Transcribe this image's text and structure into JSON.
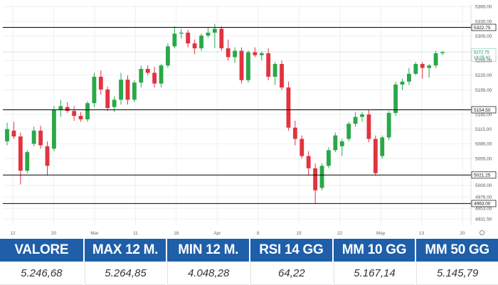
{
  "chart_data": {
    "type": "candlestick",
    "x_ticks": [
      "12",
      "20",
      "Mar",
      "11",
      "18",
      "Apr",
      "8",
      "15",
      "22",
      "May",
      "13",
      "20"
    ],
    "y_ticks": [
      "5365.00",
      "5335.00",
      "5305.00",
      "5255.00",
      "5225.00",
      "5195.00",
      "5145.00",
      "5115.00",
      "5085.00",
      "5055.00",
      "5000.00",
      "4976.00",
      "4953.00",
      "4931.50"
    ],
    "ylim": [
      4920,
      5370
    ],
    "levels": [
      {
        "label": "5322.75",
        "value": 5322.75,
        "color": "#000000"
      },
      {
        "label": "5154.50",
        "value": 5154.5,
        "color": "#000000"
      },
      {
        "label": "5021.25",
        "value": 5021.25,
        "color": "#000000"
      },
      {
        "label": "4963.00",
        "value": 4963.0,
        "color": "#000000"
      }
    ],
    "current_price": {
      "label": "5272.75",
      "sublabel": "16:05:42",
      "value": 5272.75,
      "color": "#1a9e86"
    },
    "colors": {
      "up": "#2aa84a",
      "down": "#e2333f",
      "grid": "#efefef"
    },
    "candles": [
      {
        "o": 5090,
        "h": 5128,
        "l": 5082,
        "c": 5115
      },
      {
        "o": 5112,
        "h": 5130,
        "l": 5095,
        "c": 5100
      },
      {
        "o": 5100,
        "h": 5108,
        "l": 5002,
        "c": 5030
      },
      {
        "o": 5030,
        "h": 5072,
        "l": 5025,
        "c": 5068
      },
      {
        "o": 5085,
        "h": 5120,
        "l": 5080,
        "c": 5112
      },
      {
        "o": 5112,
        "h": 5122,
        "l": 5075,
        "c": 5082
      },
      {
        "o": 5080,
        "h": 5090,
        "l": 5020,
        "c": 5040
      },
      {
        "o": 5075,
        "h": 5162,
        "l": 5070,
        "c": 5155
      },
      {
        "o": 5155,
        "h": 5175,
        "l": 5140,
        "c": 5162
      },
      {
        "o": 5160,
        "h": 5170,
        "l": 5148,
        "c": 5152
      },
      {
        "o": 5152,
        "h": 5162,
        "l": 5132,
        "c": 5142
      },
      {
        "o": 5142,
        "h": 5150,
        "l": 5130,
        "c": 5135
      },
      {
        "o": 5135,
        "h": 5172,
        "l": 5130,
        "c": 5168
      },
      {
        "o": 5168,
        "h": 5230,
        "l": 5160,
        "c": 5222
      },
      {
        "o": 5222,
        "h": 5235,
        "l": 5185,
        "c": 5196
      },
      {
        "o": 5196,
        "h": 5202,
        "l": 5152,
        "c": 5158
      },
      {
        "o": 5160,
        "h": 5182,
        "l": 5150,
        "c": 5175
      },
      {
        "o": 5175,
        "h": 5230,
        "l": 5165,
        "c": 5216
      },
      {
        "o": 5216,
        "h": 5225,
        "l": 5165,
        "c": 5175
      },
      {
        "o": 5175,
        "h": 5215,
        "l": 5170,
        "c": 5210
      },
      {
        "o": 5210,
        "h": 5245,
        "l": 5200,
        "c": 5238
      },
      {
        "o": 5238,
        "h": 5245,
        "l": 5225,
        "c": 5230
      },
      {
        "o": 5230,
        "h": 5242,
        "l": 5200,
        "c": 5208
      },
      {
        "o": 5208,
        "h": 5248,
        "l": 5200,
        "c": 5245
      },
      {
        "o": 5245,
        "h": 5290,
        "l": 5240,
        "c": 5284
      },
      {
        "o": 5284,
        "h": 5325,
        "l": 5280,
        "c": 5310
      },
      {
        "o": 5310,
        "h": 5320,
        "l": 5300,
        "c": 5312
      },
      {
        "o": 5312,
        "h": 5318,
        "l": 5282,
        "c": 5290
      },
      {
        "o": 5290,
        "h": 5298,
        "l": 5268,
        "c": 5280
      },
      {
        "o": 5280,
        "h": 5310,
        "l": 5275,
        "c": 5306
      },
      {
        "o": 5306,
        "h": 5322,
        "l": 5302,
        "c": 5312
      },
      {
        "o": 5312,
        "h": 5330,
        "l": 5280,
        "c": 5320
      },
      {
        "o": 5320,
        "h": 5325,
        "l": 5275,
        "c": 5280
      },
      {
        "o": 5280,
        "h": 5298,
        "l": 5255,
        "c": 5262
      },
      {
        "o": 5262,
        "h": 5282,
        "l": 5250,
        "c": 5275
      },
      {
        "o": 5275,
        "h": 5282,
        "l": 5208,
        "c": 5215
      },
      {
        "o": 5215,
        "h": 5276,
        "l": 5210,
        "c": 5272
      },
      {
        "o": 5272,
        "h": 5282,
        "l": 5262,
        "c": 5266
      },
      {
        "o": 5266,
        "h": 5274,
        "l": 5255,
        "c": 5270
      },
      {
        "o": 5270,
        "h": 5280,
        "l": 5215,
        "c": 5222
      },
      {
        "o": 5222,
        "h": 5252,
        "l": 5205,
        "c": 5248
      },
      {
        "o": 5248,
        "h": 5255,
        "l": 5195,
        "c": 5200
      },
      {
        "o": 5200,
        "h": 5212,
        "l": 5112,
        "c": 5118
      },
      {
        "o": 5118,
        "h": 5132,
        "l": 5082,
        "c": 5095
      },
      {
        "o": 5095,
        "h": 5102,
        "l": 5055,
        "c": 5060
      },
      {
        "o": 5060,
        "h": 5070,
        "l": 5020,
        "c": 5035
      },
      {
        "o": 5035,
        "h": 5045,
        "l": 4963,
        "c": 4990
      },
      {
        "o": 4995,
        "h": 5045,
        "l": 4990,
        "c": 5040
      },
      {
        "o": 5040,
        "h": 5078,
        "l": 5035,
        "c": 5072
      },
      {
        "o": 5072,
        "h": 5108,
        "l": 5068,
        "c": 5102
      },
      {
        "o": 5080,
        "h": 5095,
        "l": 5060,
        "c": 5090
      },
      {
        "o": 5095,
        "h": 5130,
        "l": 5090,
        "c": 5126
      },
      {
        "o": 5126,
        "h": 5150,
        "l": 5120,
        "c": 5140
      },
      {
        "o": 5140,
        "h": 5150,
        "l": 5130,
        "c": 5145
      },
      {
        "o": 5145,
        "h": 5155,
        "l": 5088,
        "c": 5095
      },
      {
        "o": 5095,
        "h": 5102,
        "l": 5020,
        "c": 5025
      },
      {
        "o": 5060,
        "h": 5102,
        "l": 5055,
        "c": 5098
      },
      {
        "o": 5098,
        "h": 5152,
        "l": 5092,
        "c": 5148
      },
      {
        "o": 5148,
        "h": 5212,
        "l": 5142,
        "c": 5206
      },
      {
        "o": 5206,
        "h": 5218,
        "l": 5195,
        "c": 5212
      },
      {
        "o": 5212,
        "h": 5240,
        "l": 5205,
        "c": 5228
      },
      {
        "o": 5228,
        "h": 5252,
        "l": 5225,
        "c": 5248
      },
      {
        "o": 5248,
        "h": 5252,
        "l": 5218,
        "c": 5240
      },
      {
        "o": 5240,
        "h": 5248,
        "l": 5220,
        "c": 5245
      },
      {
        "o": 5245,
        "h": 5275,
        "l": 5240,
        "c": 5270
      },
      {
        "o": 5270,
        "h": 5275,
        "l": 5266,
        "c": 5272
      }
    ]
  },
  "table": {
    "columns": [
      {
        "header": "VALORE",
        "value": "5.246,68"
      },
      {
        "header": "MAX 12 M.",
        "value": "5.264,85"
      },
      {
        "header": "MIN 12 M.",
        "value": "4.048,28"
      },
      {
        "header": "RSI 14 GG",
        "value": "64,22"
      },
      {
        "header": "MM 10 GG",
        "value": "5.167,14"
      },
      {
        "header": "MM 50 GG",
        "value": "5.145,79"
      }
    ]
  }
}
